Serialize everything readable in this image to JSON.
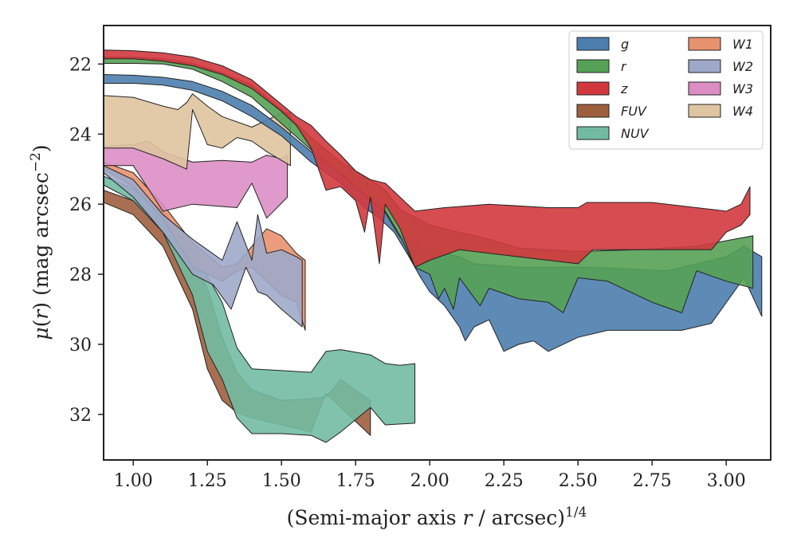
{
  "chart_data": {
    "type": "area",
    "xlabel": "(Semi-major axis r / arcsec)^1/4",
    "xlabel_parts": {
      "prefix": "(Semi-major axis ",
      "var": "r",
      "mid": " / arcsec)",
      "sup": "1/4"
    },
    "ylabel": "μ(r) (mag arcsec^-2)",
    "ylabel_parts": {
      "mu": "μ",
      "open": "(",
      "var": "r",
      "close": ")",
      "rest": " (mag arcsec",
      "sup": "−2",
      "end": ")"
    },
    "xlim": [
      0.9,
      3.15
    ],
    "ylim": [
      33.3,
      20.9
    ],
    "y_inverted": true,
    "xticks": [
      1.0,
      1.25,
      1.5,
      1.75,
      2.0,
      2.25,
      2.5,
      2.75,
      3.0
    ],
    "xtick_labels": [
      "1.00",
      "1.25",
      "1.50",
      "1.75",
      "2.00",
      "2.25",
      "2.50",
      "2.75",
      "3.00"
    ],
    "yticks": [
      22,
      24,
      26,
      28,
      30,
      32
    ],
    "ytick_labels": [
      "22",
      "24",
      "26",
      "28",
      "30",
      "32"
    ],
    "legend_placement": "top-right",
    "legend_columns": 2,
    "series": [
      {
        "name": "g",
        "color": "#4c7eae",
        "upper": [
          [
            0.9,
            22.3
          ],
          [
            1.0,
            22.32
          ],
          [
            1.1,
            22.38
          ],
          [
            1.2,
            22.5
          ],
          [
            1.3,
            22.78
          ],
          [
            1.4,
            23.18
          ],
          [
            1.5,
            23.8
          ],
          [
            1.6,
            24.5
          ],
          [
            1.7,
            25.15
          ],
          [
            1.8,
            25.8
          ],
          [
            1.84,
            26.1
          ],
          [
            1.9,
            26.95
          ],
          [
            1.95,
            27.1
          ],
          [
            2.0,
            27.3
          ],
          [
            2.05,
            27.4
          ],
          [
            2.1,
            27.5
          ],
          [
            2.15,
            27.7
          ],
          [
            2.3,
            27.8
          ],
          [
            2.55,
            27.8
          ],
          [
            2.8,
            27.9
          ],
          [
            3.0,
            27.5
          ],
          [
            3.06,
            27.2
          ],
          [
            3.12,
            27.5
          ]
        ],
        "lower": [
          [
            3.12,
            29.2
          ],
          [
            3.06,
            28.1
          ],
          [
            2.95,
            29.4
          ],
          [
            2.85,
            29.6
          ],
          [
            2.7,
            29.6
          ],
          [
            2.6,
            29.6
          ],
          [
            2.5,
            29.8
          ],
          [
            2.4,
            30.2
          ],
          [
            2.35,
            29.9
          ],
          [
            2.3,
            30.0
          ],
          [
            2.25,
            30.2
          ],
          [
            2.2,
            29.3
          ],
          [
            2.15,
            29.5
          ],
          [
            2.12,
            29.9
          ],
          [
            2.1,
            29.5
          ],
          [
            2.05,
            28.9
          ],
          [
            2.0,
            28.5
          ],
          [
            1.97,
            28.1
          ],
          [
            1.93,
            27.5
          ],
          [
            1.88,
            26.8
          ],
          [
            1.83,
            26.4
          ],
          [
            1.78,
            26.1
          ],
          [
            1.7,
            25.4
          ],
          [
            1.6,
            24.8
          ],
          [
            1.5,
            24.05
          ],
          [
            1.4,
            23.5
          ],
          [
            1.3,
            23.05
          ],
          [
            1.2,
            22.75
          ],
          [
            1.1,
            22.6
          ],
          [
            1.0,
            22.55
          ],
          [
            0.9,
            22.55
          ]
        ]
      },
      {
        "name": "r",
        "color": "#55a155",
        "upper": [
          [
            0.9,
            21.8
          ],
          [
            1.0,
            21.8
          ],
          [
            1.1,
            21.85
          ],
          [
            1.2,
            21.98
          ],
          [
            1.3,
            22.25
          ],
          [
            1.4,
            22.6
          ],
          [
            1.5,
            23.3
          ],
          [
            1.6,
            24.1
          ],
          [
            1.7,
            24.8
          ],
          [
            1.8,
            25.3
          ],
          [
            1.85,
            25.6
          ],
          [
            1.9,
            26.15
          ],
          [
            2.0,
            26.6
          ],
          [
            2.1,
            26.8
          ],
          [
            2.2,
            27.0
          ],
          [
            2.3,
            27.25
          ],
          [
            2.5,
            27.35
          ],
          [
            2.7,
            27.3
          ],
          [
            2.9,
            27.2
          ],
          [
            3.09,
            26.9
          ]
        ],
        "lower": [
          [
            3.09,
            28.4
          ],
          [
            3.0,
            28.2
          ],
          [
            2.9,
            27.9
          ],
          [
            2.85,
            29.1
          ],
          [
            2.75,
            28.8
          ],
          [
            2.6,
            28.2
          ],
          [
            2.5,
            28.1
          ],
          [
            2.45,
            29.1
          ],
          [
            2.4,
            28.8
          ],
          [
            2.3,
            28.7
          ],
          [
            2.2,
            28.4
          ],
          [
            2.17,
            28.9
          ],
          [
            2.1,
            28.1
          ],
          [
            2.08,
            29.0
          ],
          [
            2.05,
            28.4
          ],
          [
            2.03,
            28.7
          ],
          [
            2.0,
            28.0
          ],
          [
            1.95,
            27.8
          ],
          [
            1.9,
            26.9
          ],
          [
            1.85,
            26.2
          ],
          [
            1.8,
            25.9
          ],
          [
            1.7,
            25.1
          ],
          [
            1.6,
            24.45
          ],
          [
            1.5,
            23.7
          ],
          [
            1.4,
            22.95
          ],
          [
            1.3,
            22.5
          ],
          [
            1.2,
            22.15
          ],
          [
            1.1,
            22.0
          ],
          [
            1.0,
            21.98
          ],
          [
            0.9,
            21.98
          ]
        ]
      },
      {
        "name": "z",
        "color": "#d1383e",
        "upper": [
          [
            0.9,
            21.6
          ],
          [
            1.0,
            21.62
          ],
          [
            1.1,
            21.68
          ],
          [
            1.2,
            21.8
          ],
          [
            1.3,
            22.05
          ],
          [
            1.4,
            22.45
          ],
          [
            1.5,
            23.15
          ],
          [
            1.55,
            23.5
          ],
          [
            1.6,
            23.75
          ],
          [
            1.65,
            24.2
          ],
          [
            1.7,
            24.6
          ],
          [
            1.75,
            25.05
          ],
          [
            1.8,
            25.3
          ],
          [
            1.85,
            25.4
          ],
          [
            1.9,
            25.8
          ],
          [
            1.95,
            26.2
          ],
          [
            2.05,
            26.1
          ],
          [
            2.2,
            26.0
          ],
          [
            2.4,
            26.1
          ],
          [
            2.5,
            26.1
          ],
          [
            2.53,
            25.95
          ],
          [
            2.75,
            25.95
          ],
          [
            3.0,
            26.2
          ],
          [
            3.05,
            26.0
          ],
          [
            3.08,
            25.5
          ]
        ],
        "lower": [
          [
            3.08,
            26.3
          ],
          [
            3.05,
            26.6
          ],
          [
            3.0,
            26.8
          ],
          [
            2.95,
            27.3
          ],
          [
            2.8,
            27.3
          ],
          [
            2.55,
            27.3
          ],
          [
            2.5,
            27.7
          ],
          [
            2.3,
            27.5
          ],
          [
            2.1,
            27.3
          ],
          [
            2.0,
            27.6
          ],
          [
            1.95,
            27.8
          ],
          [
            1.9,
            26.7
          ],
          [
            1.85,
            26.0
          ],
          [
            1.83,
            27.7
          ],
          [
            1.8,
            25.8
          ],
          [
            1.78,
            26.8
          ],
          [
            1.75,
            25.9
          ],
          [
            1.7,
            25.5
          ],
          [
            1.65,
            25.6
          ],
          [
            1.6,
            24.4
          ],
          [
            1.55,
            23.75
          ],
          [
            1.5,
            23.35
          ],
          [
            1.4,
            22.7
          ],
          [
            1.3,
            22.3
          ],
          [
            1.2,
            22.05
          ],
          [
            1.1,
            21.92
          ],
          [
            1.0,
            21.85
          ],
          [
            0.9,
            21.85
          ]
        ]
      },
      {
        "name": "FUV",
        "color": "#9e5f3f",
        "upper": [
          [
            0.9,
            25.6
          ],
          [
            1.0,
            25.9
          ],
          [
            1.1,
            26.5
          ],
          [
            1.2,
            27.6
          ],
          [
            1.25,
            28.4
          ],
          [
            1.3,
            29.8
          ],
          [
            1.35,
            30.8
          ],
          [
            1.4,
            31.3
          ],
          [
            1.5,
            31.6
          ],
          [
            1.6,
            31.55
          ],
          [
            1.65,
            31.5
          ],
          [
            1.7,
            31.0
          ],
          [
            1.75,
            31.3
          ],
          [
            1.8,
            31.6
          ]
        ],
        "lower": [
          [
            1.8,
            32.6
          ],
          [
            1.65,
            31.4
          ],
          [
            1.6,
            32.5
          ],
          [
            1.5,
            32.3
          ],
          [
            1.4,
            32.1
          ],
          [
            1.35,
            31.95
          ],
          [
            1.3,
            31.6
          ],
          [
            1.25,
            30.7
          ],
          [
            1.2,
            29.0
          ],
          [
            1.1,
            27.2
          ],
          [
            1.0,
            26.3
          ],
          [
            0.9,
            25.95
          ]
        ]
      },
      {
        "name": "NUV",
        "color": "#72bba2",
        "upper": [
          [
            0.9,
            25.2
          ],
          [
            1.0,
            25.55
          ],
          [
            1.1,
            26.2
          ],
          [
            1.2,
            27.3
          ],
          [
            1.3,
            28.8
          ],
          [
            1.35,
            30.1
          ],
          [
            1.4,
            30.7
          ],
          [
            1.5,
            30.75
          ],
          [
            1.6,
            30.8
          ],
          [
            1.65,
            30.2
          ],
          [
            1.7,
            30.15
          ],
          [
            1.8,
            30.3
          ],
          [
            1.85,
            30.55
          ],
          [
            1.9,
            30.6
          ],
          [
            1.95,
            30.55
          ]
        ],
        "lower": [
          [
            1.95,
            32.25
          ],
          [
            1.85,
            32.3
          ],
          [
            1.8,
            31.8
          ],
          [
            1.7,
            32.5
          ],
          [
            1.65,
            32.8
          ],
          [
            1.6,
            32.6
          ],
          [
            1.5,
            32.55
          ],
          [
            1.4,
            32.55
          ],
          [
            1.35,
            32.1
          ],
          [
            1.3,
            31.0
          ],
          [
            1.25,
            30.2
          ],
          [
            1.2,
            28.6
          ],
          [
            1.1,
            26.8
          ],
          [
            1.0,
            25.9
          ],
          [
            0.9,
            25.45
          ]
        ]
      },
      {
        "name": "W1",
        "color": "#e8916e",
        "upper": [
          [
            0.9,
            24.8
          ],
          [
            1.0,
            25.1
          ],
          [
            1.1,
            26.0
          ],
          [
            1.2,
            27.1
          ],
          [
            1.3,
            27.8
          ],
          [
            1.35,
            27.7
          ],
          [
            1.4,
            27.2
          ],
          [
            1.45,
            26.7
          ],
          [
            1.5,
            26.9
          ],
          [
            1.55,
            27.4
          ],
          [
            1.58,
            27.6
          ]
        ],
        "lower": [
          [
            1.58,
            29.6
          ],
          [
            1.55,
            28.8
          ],
          [
            1.5,
            28.6
          ],
          [
            1.45,
            28.2
          ],
          [
            1.4,
            27.8
          ],
          [
            1.35,
            27.9
          ],
          [
            1.3,
            28.2
          ],
          [
            1.2,
            27.8
          ],
          [
            1.1,
            26.4
          ],
          [
            1.0,
            25.5
          ],
          [
            0.9,
            25.0
          ]
        ]
      },
      {
        "name": "W2",
        "color": "#9fa8c8",
        "upper": [
          [
            0.9,
            24.9
          ],
          [
            1.0,
            25.3
          ],
          [
            1.1,
            26.3
          ],
          [
            1.2,
            27.0
          ],
          [
            1.3,
            27.6
          ],
          [
            1.35,
            26.5
          ],
          [
            1.4,
            27.6
          ],
          [
            1.42,
            26.3
          ],
          [
            1.45,
            27.4
          ],
          [
            1.5,
            27.3
          ],
          [
            1.55,
            27.5
          ],
          [
            1.57,
            27.6
          ]
        ],
        "lower": [
          [
            1.57,
            29.5
          ],
          [
            1.5,
            29.0
          ],
          [
            1.45,
            28.6
          ],
          [
            1.42,
            28.5
          ],
          [
            1.38,
            27.8
          ],
          [
            1.33,
            29.0
          ],
          [
            1.27,
            28.3
          ],
          [
            1.2,
            28.0
          ],
          [
            1.1,
            26.8
          ],
          [
            1.0,
            25.8
          ],
          [
            0.9,
            25.1
          ]
        ]
      },
      {
        "name": "W3",
        "color": "#dc8ec4",
        "upper": [
          [
            0.9,
            24.35
          ],
          [
            1.0,
            24.3
          ],
          [
            1.05,
            24.2
          ],
          [
            1.1,
            24.5
          ],
          [
            1.2,
            24.8
          ],
          [
            1.3,
            24.75
          ],
          [
            1.4,
            24.8
          ],
          [
            1.45,
            24.6
          ],
          [
            1.5,
            24.7
          ],
          [
            1.52,
            24.6
          ]
        ],
        "lower": [
          [
            1.52,
            25.8
          ],
          [
            1.45,
            26.4
          ],
          [
            1.4,
            25.4
          ],
          [
            1.35,
            26.1
          ],
          [
            1.2,
            26.0
          ],
          [
            1.1,
            26.2
          ],
          [
            1.0,
            24.9
          ],
          [
            0.9,
            24.9
          ]
        ]
      },
      {
        "name": "W4",
        "color": "#dfc4a0",
        "upper": [
          [
            0.9,
            22.9
          ],
          [
            1.0,
            22.95
          ],
          [
            1.1,
            23.2
          ],
          [
            1.15,
            23.3
          ],
          [
            1.18,
            23.1
          ],
          [
            1.2,
            22.85
          ],
          [
            1.25,
            23.2
          ],
          [
            1.3,
            23.5
          ],
          [
            1.4,
            23.8
          ],
          [
            1.5,
            23.4
          ],
          [
            1.53,
            23.4
          ]
        ],
        "lower": [
          [
            1.53,
            24.9
          ],
          [
            1.45,
            24.5
          ],
          [
            1.4,
            24.2
          ],
          [
            1.35,
            24.1
          ],
          [
            1.3,
            24.4
          ],
          [
            1.25,
            24.3
          ],
          [
            1.2,
            23.3
          ],
          [
            1.18,
            25.0
          ],
          [
            1.1,
            24.7
          ],
          [
            1.0,
            24.4
          ],
          [
            0.9,
            24.4
          ]
        ]
      }
    ]
  }
}
